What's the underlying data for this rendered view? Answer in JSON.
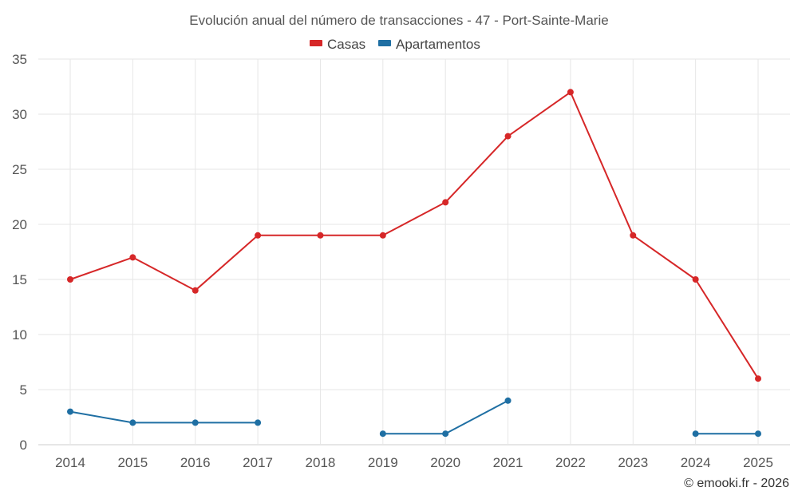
{
  "chart_data": {
    "type": "line",
    "title": "Evolución anual del número de transacciones - 47 - Port-Sainte-Marie",
    "xlabel": "",
    "ylabel": "",
    "categories": [
      "2014",
      "2015",
      "2016",
      "2017",
      "2018",
      "2019",
      "2020",
      "2021",
      "2022",
      "2023",
      "2024",
      "2025"
    ],
    "yticks": [
      "0",
      "5",
      "10",
      "15",
      "20",
      "25",
      "30",
      "35"
    ],
    "ylim": [
      0,
      35
    ],
    "grid": true,
    "legend_position": "top-center",
    "series": [
      {
        "name": "Casas",
        "color": "#d62728",
        "values": [
          15,
          17,
          14,
          19,
          19,
          19,
          22,
          28,
          32,
          19,
          15,
          6
        ]
      },
      {
        "name": "Apartamentos",
        "color": "#1f6fa3",
        "values": [
          3,
          2,
          2,
          2,
          null,
          1,
          1,
          4,
          null,
          null,
          1,
          1
        ]
      }
    ]
  },
  "credit": "© emooki.fr - 2026"
}
